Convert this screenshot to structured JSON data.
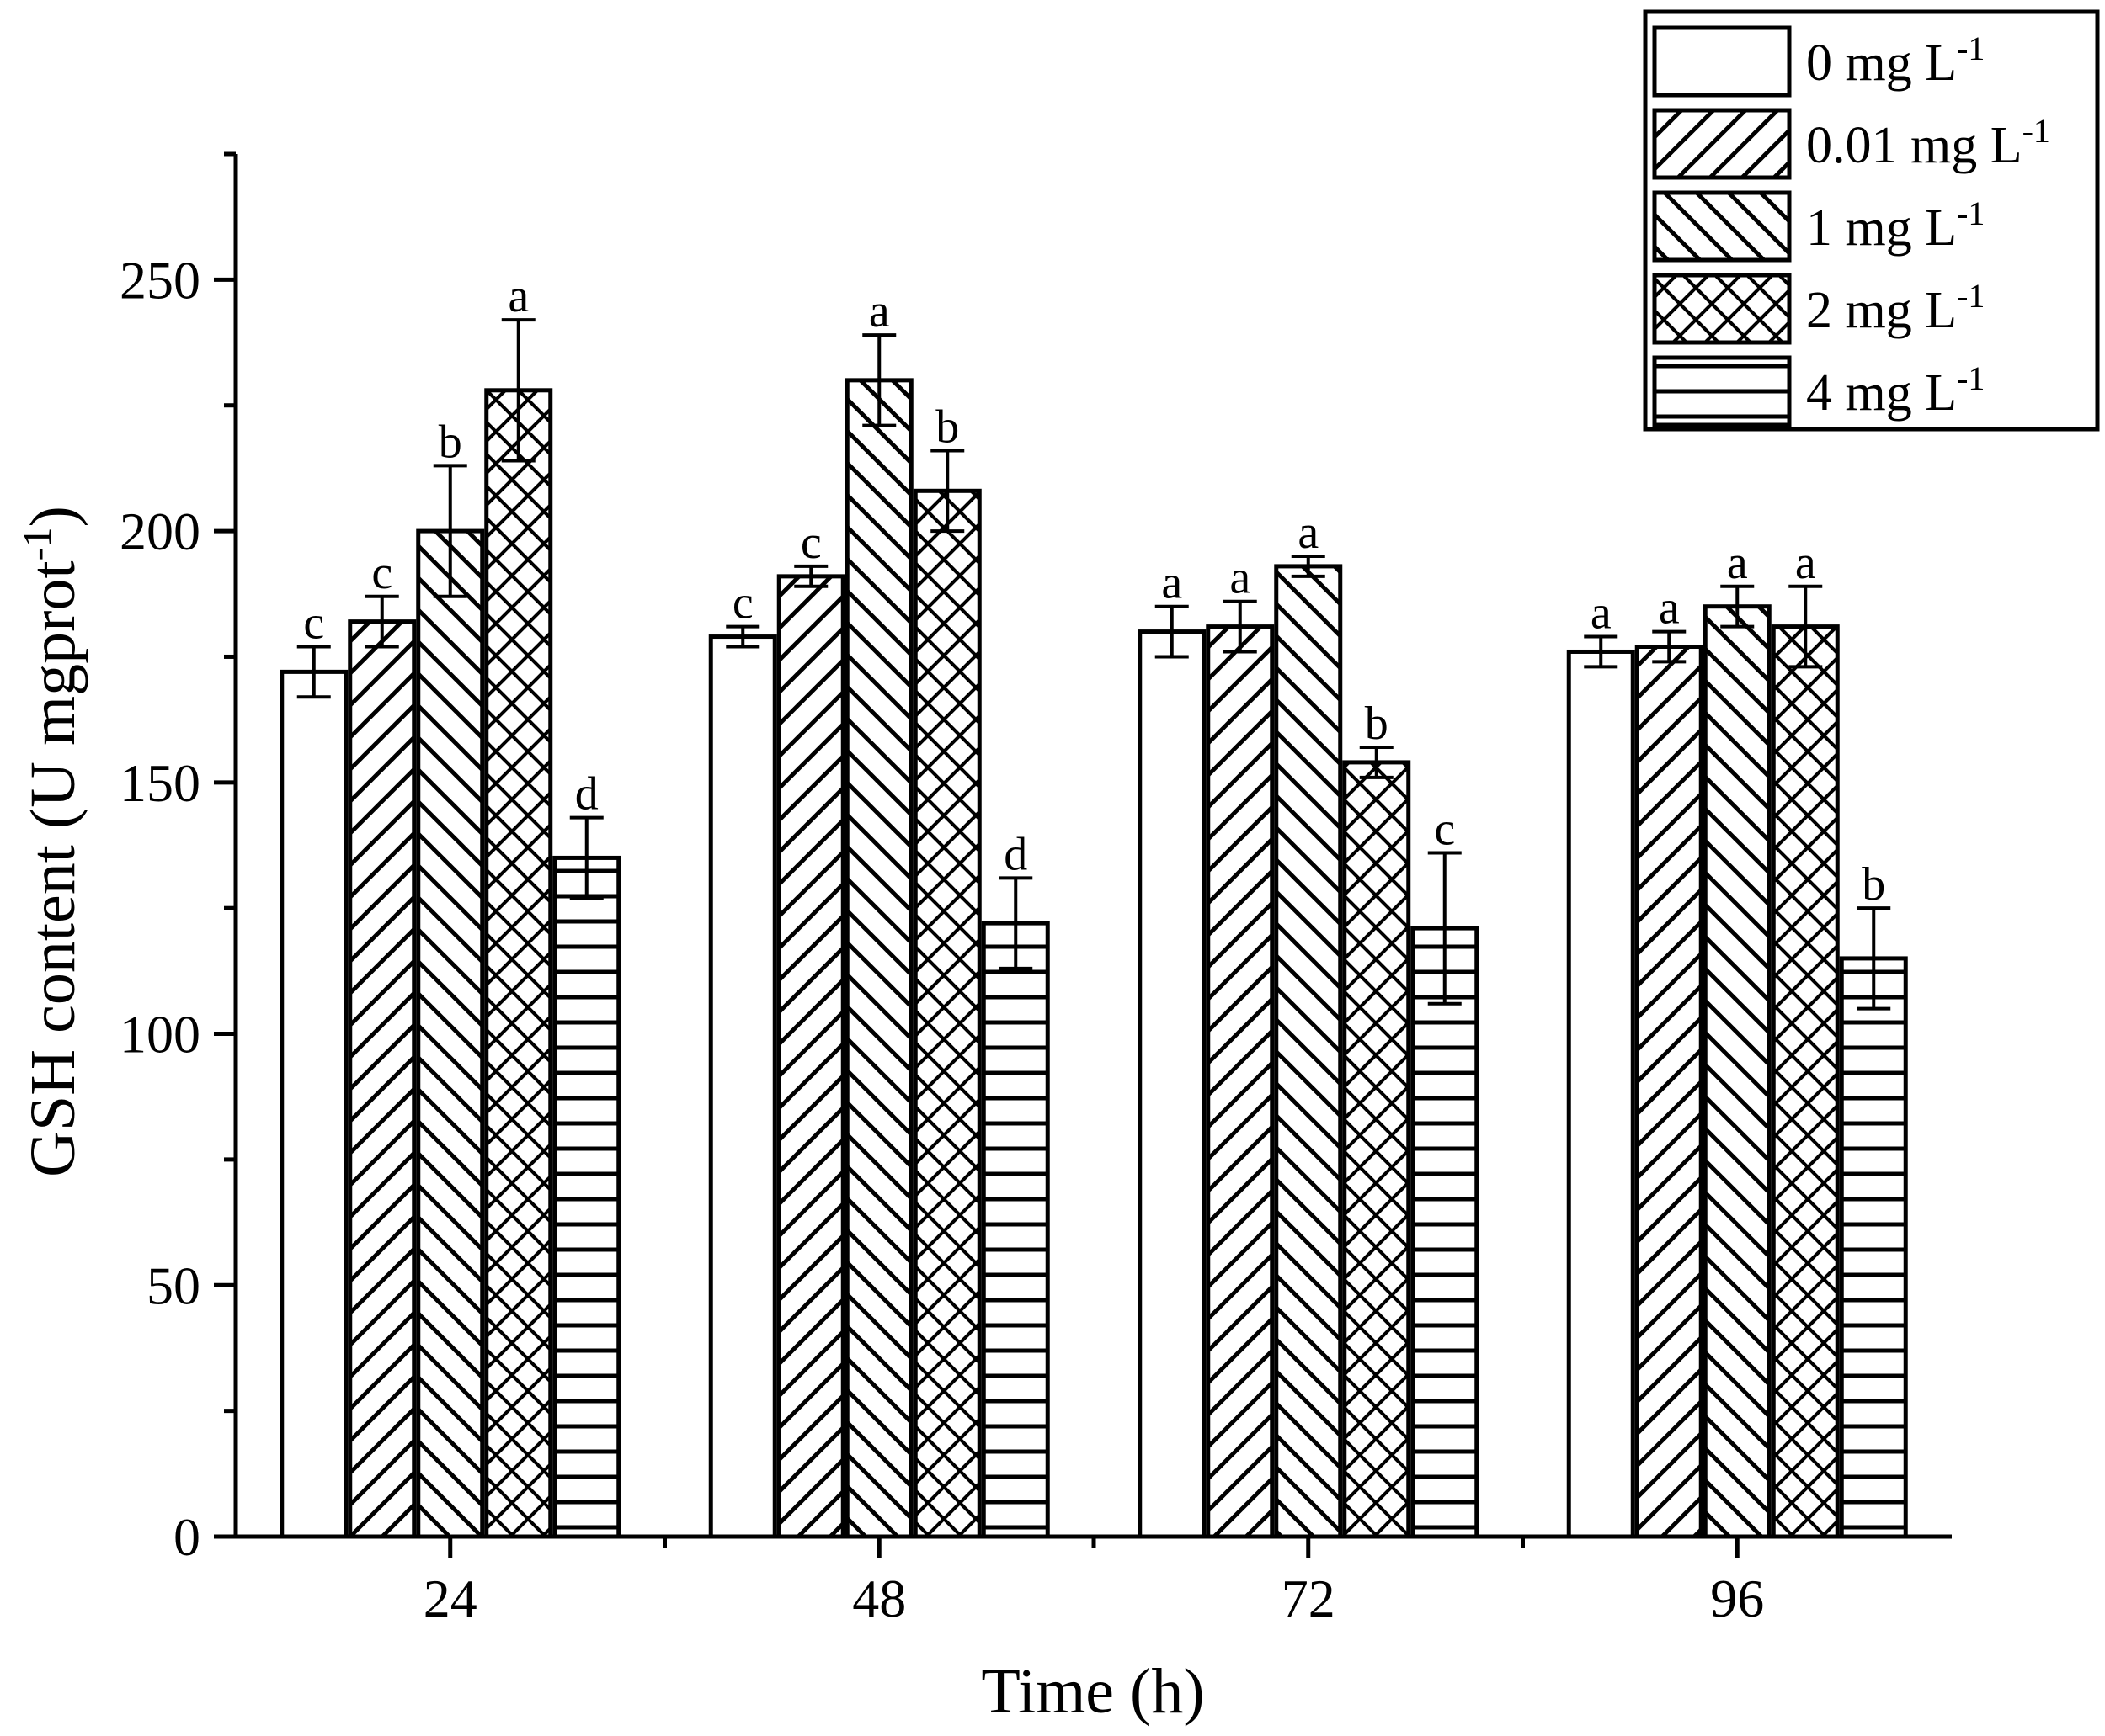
{
  "chart_data": {
    "type": "bar",
    "title": "",
    "xlabel": "Time (h)",
    "ylabel": "GSH content (U mgprot",
    "ylabel_sup": "-1",
    "ylabel_close": ")",
    "ylim": [
      0,
      275
    ],
    "yticks": [
      0,
      50,
      100,
      150,
      200,
      250
    ],
    "categories": [
      "24",
      "48",
      "72",
      "96"
    ],
    "legend_position": "top-right",
    "grid": false,
    "series": [
      {
        "name": "0 mg L",
        "name_sup": "-1",
        "pattern": "none",
        "values": [
          172,
          179,
          180,
          176
        ],
        "errors": [
          5,
          2,
          5,
          3
        ],
        "letters": [
          "c",
          "c",
          "a",
          "a"
        ]
      },
      {
        "name": "0.01 mg L",
        "name_sup": "-1",
        "pattern": "forward-diagonal",
        "values": [
          182,
          191,
          181,
          177
        ],
        "errors": [
          5,
          2,
          5,
          3
        ],
        "letters": [
          "c",
          "c",
          "a",
          "a"
        ]
      },
      {
        "name": "1 mg L",
        "name_sup": "-1",
        "pattern": "back-diagonal",
        "values": [
          200,
          230,
          193,
          185
        ],
        "errors": [
          13,
          9,
          2,
          4
        ],
        "letters": [
          "b",
          "a",
          "a",
          "a"
        ]
      },
      {
        "name": "2 mg L",
        "name_sup": "-1",
        "pattern": "crosshatch",
        "values": [
          228,
          208,
          154,
          181
        ],
        "errors": [
          14,
          8,
          3,
          8
        ],
        "letters": [
          "a",
          "b",
          "b",
          "a"
        ]
      },
      {
        "name": "4 mg L",
        "name_sup": "-1",
        "pattern": "horizontal",
        "values": [
          135,
          122,
          121,
          115
        ],
        "errors": [
          8,
          9,
          15,
          10
        ],
        "letters": [
          "d",
          "d",
          "c",
          "b"
        ]
      }
    ]
  }
}
